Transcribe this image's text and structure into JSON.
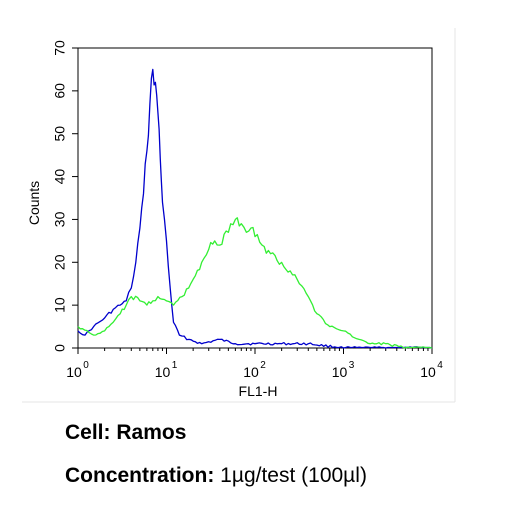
{
  "chart_data": {
    "type": "line",
    "xlabel": "FL1-H",
    "ylabel": "Counts",
    "x_scale": "log",
    "xlim": [
      1,
      10000
    ],
    "ylim": [
      0,
      70
    ],
    "x_ticks": [
      {
        "base": "10",
        "exp": "0",
        "value": 1
      },
      {
        "base": "10",
        "exp": "1",
        "value": 10
      },
      {
        "base": "10",
        "exp": "2",
        "value": 100
      },
      {
        "base": "10",
        "exp": "3",
        "value": 1000
      },
      {
        "base": "10",
        "exp": "4",
        "value": 10000
      }
    ],
    "y_ticks": [
      "0",
      "10",
      "20",
      "30",
      "40",
      "50",
      "60",
      "70"
    ],
    "grid": false,
    "series": [
      {
        "color": "#0000cc",
        "points": [
          [
            1.0,
            4
          ],
          [
            1.2,
            3
          ],
          [
            1.5,
            5
          ],
          [
            2.0,
            7
          ],
          [
            2.5,
            9
          ],
          [
            3.0,
            10
          ],
          [
            3.5,
            11
          ],
          [
            4.0,
            14
          ],
          [
            4.5,
            20
          ],
          [
            5.0,
            28
          ],
          [
            5.5,
            36
          ],
          [
            6.0,
            46
          ],
          [
            6.5,
            57
          ],
          [
            7.0,
            65
          ],
          [
            7.5,
            62
          ],
          [
            8.0,
            55
          ],
          [
            8.5,
            44
          ],
          [
            9.0,
            34
          ],
          [
            10.0,
            25
          ],
          [
            11.0,
            14
          ],
          [
            12.0,
            6
          ],
          [
            14.0,
            3
          ],
          [
            18.0,
            2
          ],
          [
            25.0,
            1
          ],
          [
            40.0,
            2
          ],
          [
            60.0,
            1
          ],
          [
            100.0,
            1
          ],
          [
            200.0,
            1
          ],
          [
            400.0,
            1
          ],
          [
            1000.0,
            0
          ],
          [
            3000.0,
            0
          ],
          [
            10000.0,
            0
          ]
        ]
      },
      {
        "color": "#33ee33",
        "points": [
          [
            1.0,
            5
          ],
          [
            1.5,
            3
          ],
          [
            2.0,
            4
          ],
          [
            2.5,
            6
          ],
          [
            3.0,
            8
          ],
          [
            3.5,
            10
          ],
          [
            4.0,
            12
          ],
          [
            5.0,
            11
          ],
          [
            6.0,
            10
          ],
          [
            7.0,
            11
          ],
          [
            8.0,
            12
          ],
          [
            10.0,
            11
          ],
          [
            12.0,
            10
          ],
          [
            15.0,
            12
          ],
          [
            20.0,
            16
          ],
          [
            25.0,
            20
          ],
          [
            30.0,
            23
          ],
          [
            35.0,
            25
          ],
          [
            40.0,
            24
          ],
          [
            50.0,
            27
          ],
          [
            60.0,
            30
          ],
          [
            70.0,
            29
          ],
          [
            80.0,
            27
          ],
          [
            90.0,
            28
          ],
          [
            100.0,
            26
          ],
          [
            120.0,
            24
          ],
          [
            150.0,
            22
          ],
          [
            200.0,
            20
          ],
          [
            250.0,
            18
          ],
          [
            300.0,
            16
          ],
          [
            400.0,
            12
          ],
          [
            500.0,
            8
          ],
          [
            700.0,
            5
          ],
          [
            1000.0,
            4
          ],
          [
            1500.0,
            2
          ],
          [
            2000.0,
            1
          ],
          [
            3000.0,
            1
          ],
          [
            5000.0,
            0
          ],
          [
            10000.0,
            0
          ]
        ]
      }
    ]
  },
  "captions": {
    "cell_label": "Cell:",
    "cell_value": "Ramos",
    "conc_label": "Concentration:",
    "conc_value": "1µg/test (100µl)"
  }
}
